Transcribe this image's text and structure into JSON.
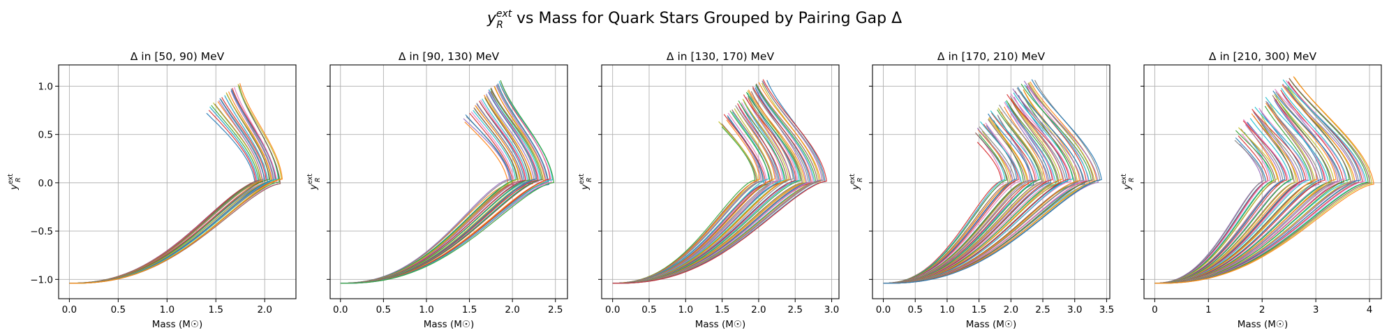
{
  "chart_data": [
    {
      "type": "line",
      "title": "Δ in [50, 90) MeV",
      "xlabel": "Mass (M☉)",
      "ylabel": {
        "base": "y",
        "sub": "R",
        "sup": "ext"
      },
      "xlim": [
        -0.11,
        2.32
      ],
      "ylim": [
        -1.2,
        1.22
      ],
      "xticks": [
        0.0,
        0.5,
        1.0,
        1.5,
        2.0
      ],
      "xticklabels": [
        "0.0",
        "0.5",
        "1.0",
        "1.5",
        "2.0"
      ],
      "yticks": [
        -1.0,
        -0.5,
        0.0,
        0.5,
        1.0
      ],
      "yticklabels": [
        "−1.0",
        "−0.5",
        "0.0",
        "0.5",
        "1.0"
      ],
      "show_yticklabels": true,
      "grid": true,
      "curve_family": {
        "count": 28,
        "max_mass_range": [
          1.9,
          2.18
        ],
        "turn_mass_range": [
          1.42,
          1.58
        ],
        "end_y_range": [
          0.72,
          1.03
        ],
        "end_mass_offset_range": [
          -0.05,
          0.2
        ]
      }
    },
    {
      "type": "line",
      "title": "Δ in [90, 130) MeV",
      "xlabel": "Mass (M☉)",
      "ylabel": {
        "base": "y",
        "sub": "R",
        "sup": "ext"
      },
      "xlim": [
        -0.12,
        2.64
      ],
      "ylim": [
        -1.2,
        1.22
      ],
      "xticks": [
        0.0,
        0.5,
        1.0,
        1.5,
        2.0,
        2.5
      ],
      "xticklabels": [
        "0.0",
        "0.5",
        "1.0",
        "1.5",
        "2.0",
        "2.5"
      ],
      "yticks": [
        -1.0,
        -0.5,
        0.0,
        0.5,
        1.0
      ],
      "yticklabels": [
        "−1.0",
        "−0.5",
        "0.0",
        "0.5",
        "1.0"
      ],
      "show_yticklabels": false,
      "grid": true,
      "curve_family": {
        "count": 38,
        "max_mass_range": [
          1.95,
          2.48
        ],
        "turn_mass_range": [
          1.45,
          1.65
        ],
        "end_y_range": [
          0.63,
          1.06
        ],
        "end_mass_offset_range": [
          -0.05,
          0.25
        ]
      }
    },
    {
      "type": "line",
      "title": "Δ in [130, 170) MeV",
      "xlabel": "Mass (M☉)",
      "ylabel": {
        "base": "y",
        "sub": "R",
        "sup": "ext"
      },
      "xlim": [
        -0.15,
        3.1
      ],
      "ylim": [
        -1.2,
        1.22
      ],
      "xticks": [
        0.0,
        0.5,
        1.0,
        1.5,
        2.0,
        2.5,
        3.0
      ],
      "xticklabels": [
        "0.0",
        "0.5",
        "1.0",
        "1.5",
        "2.0",
        "2.5",
        "3.0"
      ],
      "yticks": [
        -1.0,
        -0.5,
        0.0,
        0.5,
        1.0
      ],
      "yticklabels": [
        "−1.0",
        "−0.5",
        "0.0",
        "0.5",
        "1.0"
      ],
      "show_yticklabels": false,
      "grid": true,
      "curve_family": {
        "count": 48,
        "max_mass_range": [
          1.95,
          2.93
        ],
        "turn_mass_range": [
          1.45,
          1.85
        ],
        "end_y_range": [
          0.58,
          1.07
        ],
        "end_mass_offset_range": [
          -0.05,
          0.3
        ]
      }
    },
    {
      "type": "line",
      "title": "Δ in [170, 210) MeV",
      "xlabel": "Mass (M☉)",
      "ylabel": {
        "base": "y",
        "sub": "R",
        "sup": "ext"
      },
      "xlim": [
        -0.17,
        3.55
      ],
      "ylim": [
        -1.2,
        1.22
      ],
      "xticks": [
        0.0,
        0.5,
        1.0,
        1.5,
        2.0,
        2.5,
        3.0,
        3.5
      ],
      "xticklabels": [
        "0.0",
        "0.5",
        "1.0",
        "1.5",
        "2.0",
        "2.5",
        "3.0",
        "3.5"
      ],
      "yticks": [
        -1.0,
        -0.5,
        0.0,
        0.5,
        1.0
      ],
      "yticklabels": [
        "−1.0",
        "−0.5",
        "0.0",
        "0.5",
        "1.0"
      ],
      "show_yticklabels": false,
      "grid": true,
      "curve_family": {
        "count": 60,
        "max_mass_range": [
          1.85,
          3.42
        ],
        "turn_mass_range": [
          1.35,
          2.05
        ],
        "end_y_range": [
          0.42,
          1.07
        ],
        "end_mass_offset_range": [
          -0.05,
          0.35
        ]
      }
    },
    {
      "type": "line",
      "title": "Δ in [210, 300) MeV",
      "xlabel": "Mass (M☉)",
      "ylabel": {
        "base": "y",
        "sub": "R",
        "sup": "ext"
      },
      "xlim": [
        -0.2,
        4.22
      ],
      "ylim": [
        -1.2,
        1.22
      ],
      "xticks": [
        0,
        1,
        2,
        3,
        4
      ],
      "xticklabels": [
        "0",
        "1",
        "2",
        "3",
        "4"
      ],
      "yticks": [
        -1.0,
        -0.5,
        0.0,
        0.5,
        1.0
      ],
      "yticklabels": [
        "−1.0",
        "−0.5",
        "0.0",
        "0.5",
        "1.0"
      ],
      "show_yticklabels": false,
      "grid": true,
      "curve_family": {
        "count": 60,
        "max_mass_range": [
          2.0,
          4.08
        ],
        "turn_mass_range": [
          1.4,
          2.3
        ],
        "end_y_range": [
          0.4,
          1.1
        ],
        "end_mass_offset_range": [
          -0.05,
          0.4
        ]
      }
    }
  ],
  "suptitle": {
    "y": "y",
    "sub": "R",
    "sup": "ext",
    "rest": " vs Mass for Quark Stars Grouped by Pairing Gap Δ"
  },
  "palette": [
    "#1f77b4",
    "#ff7f0e",
    "#2ca02c",
    "#d62728",
    "#9467bd",
    "#8c564b",
    "#e377c2",
    "#7f7f7f",
    "#bcbd22",
    "#17becf"
  ]
}
